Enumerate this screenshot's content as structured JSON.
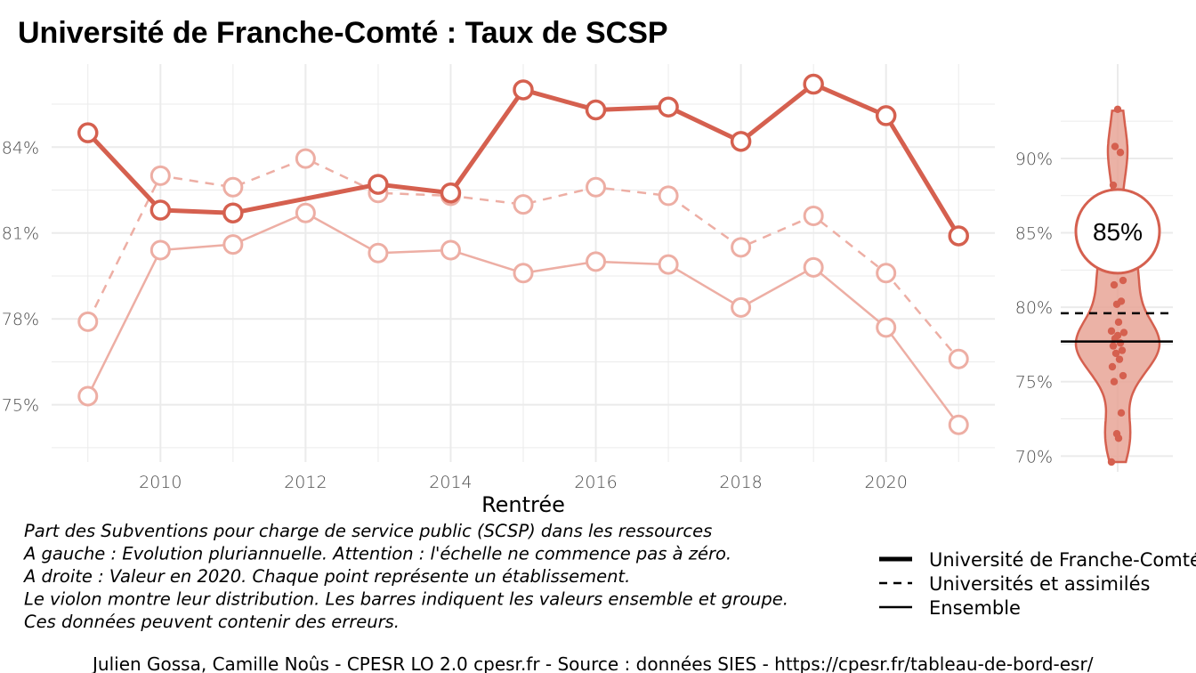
{
  "chart_data": [
    {
      "type": "line",
      "title": "Université de Franche-Comté  :  Taux de SCSP",
      "xlabel": "Rentrée",
      "ylabel": "",
      "xlim": [
        2008.5,
        2021.5
      ],
      "ylim": [
        73.0,
        86.9
      ],
      "x_ticks": [
        2010,
        2012,
        2014,
        2016,
        2018,
        2020
      ],
      "y_ticks": [
        75,
        78,
        81,
        84
      ],
      "y_tick_labels": [
        "75%",
        "78%",
        "81%",
        "84%"
      ],
      "grid": true,
      "x": [
        2009,
        2010,
        2011,
        2012,
        2013,
        2014,
        2015,
        2016,
        2017,
        2018,
        2019,
        2020,
        2021
      ],
      "series": [
        {
          "name": "Université de Franche-Comté",
          "style": "solid-thick",
          "color": "#d5604f",
          "values": [
            84.5,
            81.8,
            81.7,
            null,
            82.7,
            82.4,
            86.0,
            85.3,
            85.4,
            84.2,
            86.2,
            85.1,
            80.9
          ]
        },
        {
          "name": "Universités et assimilés",
          "style": "dashed",
          "color": "#edaea4",
          "values": [
            77.9,
            83.0,
            82.6,
            83.6,
            82.4,
            82.3,
            82.0,
            82.6,
            82.3,
            80.5,
            81.6,
            79.6,
            76.6
          ]
        },
        {
          "name": "Ensemble",
          "style": "solid-thin",
          "color": "#edaea4",
          "values": [
            75.3,
            80.4,
            80.6,
            81.7,
            80.3,
            80.4,
            79.6,
            80.0,
            79.9,
            78.4,
            79.8,
            77.7,
            74.3
          ]
        }
      ]
    },
    {
      "type": "violin",
      "year": 2020,
      "ylim": [
        69.6,
        95.2
      ],
      "y_ticks": [
        70,
        75,
        80,
        85,
        90
      ],
      "y_tick_labels": [
        "70%",
        "75%",
        "80%",
        "85%",
        "90%"
      ],
      "highlight_value": 85.1,
      "highlight_label": "85%",
      "group_line": 79.6,
      "overall_line": 77.7,
      "points": [
        93.3,
        90.8,
        90.4,
        88.2,
        84.6,
        84.1,
        83.5,
        82.5,
        81.8,
        81.5,
        80.4,
        80.2,
        79.0,
        78.4,
        78.3,
        78.1,
        77.9,
        77.6,
        77.4,
        77.1,
        76.9,
        76.5,
        76.0,
        75.4,
        75.0,
        72.9,
        71.5,
        71.2,
        69.6
      ]
    }
  ],
  "caption_lines": [
    "Part des Subventions pour charge de service public (SCSP) dans les ressources",
    "A gauche : Evolution pluriannuelle. Attention : l'échelle ne commence pas à zéro.",
    "A droite : Valeur en 2020. Chaque point représente un établissement.",
    "Le violon montre leur distribution. Les barres indiquent les valeurs ensemble et groupe.",
    "Ces données peuvent contenir des erreurs."
  ],
  "legend": [
    {
      "label": "Université de Franche-Comté",
      "style": "thick"
    },
    {
      "label": "Universités et assimilés",
      "style": "dashed"
    },
    {
      "label": "Ensemble",
      "style": "thin"
    }
  ],
  "source": "Julien Gossa, Camille Noûs - CPESR LO 2.0 cpesr.fr - Source : données SIES - https://cpesr.fr/tableau-de-bord-esr/",
  "colors": {
    "main": "#d5604f",
    "light": "#edaea4",
    "grid": "#ebebeb",
    "violin_fill": "#e8a497"
  }
}
